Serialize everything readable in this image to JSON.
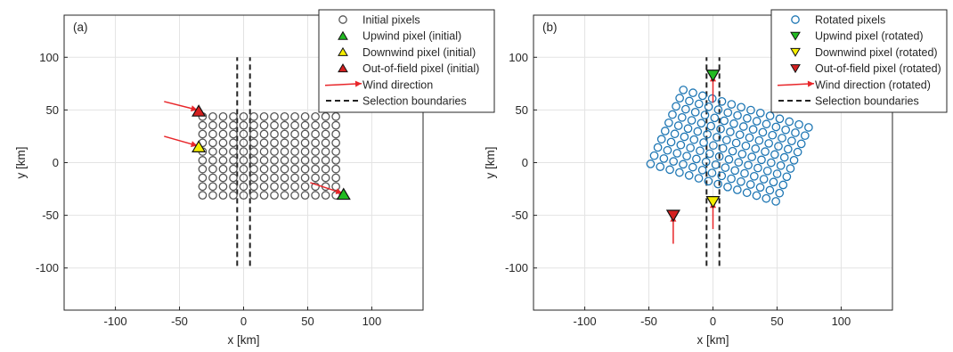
{
  "chart_data": [
    {
      "type": "scatter",
      "panel_label": "(a)",
      "xlabel": "x [km]",
      "ylabel": "y [km]",
      "xlim": [
        -140,
        140
      ],
      "ylim": [
        -140,
        140
      ],
      "xticks": [
        -100,
        -50,
        0,
        50,
        100
      ],
      "yticks": [
        -100,
        -50,
        0,
        50,
        100
      ],
      "grid": true,
      "legend_position": "top-right",
      "legend": [
        {
          "key": "pixels",
          "label": "Initial pixels"
        },
        {
          "key": "upwind",
          "label": "Upwind pixel (initial)"
        },
        {
          "key": "downwind",
          "label": "Downwind pixel (initial)"
        },
        {
          "key": "outfield",
          "label": "Out-of-field pixel (initial)"
        },
        {
          "key": "wind",
          "label": "Wind direction"
        },
        {
          "key": "boundary",
          "label": "Selection boundaries"
        }
      ],
      "pixel_grid": {
        "x_start": -32,
        "x_step": 8,
        "count_x": 14,
        "y_start": -31,
        "y_step": 8.3,
        "count_y": 10
      },
      "markers": [
        {
          "key": "upwind",
          "x": 78,
          "y": -30,
          "color": "#22bb22",
          "direction": "up"
        },
        {
          "key": "downwind",
          "x": -35,
          "y": 15,
          "color": "#f5ee00",
          "direction": "up"
        },
        {
          "key": "outfield",
          "x": -35,
          "y": 49,
          "color": "#d42020",
          "direction": "up"
        }
      ],
      "wind_arrows": [
        {
          "x1": -62,
          "y1": 58,
          "x2": -36,
          "y2": 50
        },
        {
          "x1": -62,
          "y1": 25,
          "x2": -36,
          "y2": 16
        },
        {
          "x1": 52,
          "y1": -19,
          "x2": 77,
          "y2": -29
        }
      ],
      "boundaries": [
        -5,
        5
      ],
      "boundary_y": [
        -98,
        100
      ],
      "colors": {
        "pixel": "#555555",
        "arrow": "#e8262a",
        "boundary": "#222222"
      }
    },
    {
      "type": "scatter",
      "panel_label": "(b)",
      "xlabel": "x [km]",
      "ylabel": "y [km]",
      "xlim": [
        -140,
        140
      ],
      "ylim": [
        -140,
        140
      ],
      "xticks": [
        -100,
        -50,
        0,
        50,
        100
      ],
      "yticks": [
        -100,
        -50,
        0,
        50,
        100
      ],
      "grid": true,
      "legend_position": "top-right",
      "legend": [
        {
          "key": "pixels",
          "label": "Rotated pixels"
        },
        {
          "key": "upwind",
          "label": "Upwind pixel (rotated)"
        },
        {
          "key": "downwind",
          "label": "Downwind pixel (rotated)"
        },
        {
          "key": "outfield",
          "label": "Out-of-field pixel (rotated)"
        },
        {
          "key": "wind",
          "label": "Wind direction (rotated)"
        },
        {
          "key": "boundary",
          "label": "Selection boundaries"
        }
      ],
      "pixel_grid": {
        "x_start": -32,
        "x_step": 8,
        "count_x": 14,
        "y_start": -31,
        "y_step": 8.3,
        "count_y": 10,
        "rotation_deg": -20,
        "offset_x": -8,
        "offset_y": 17
      },
      "markers": [
        {
          "key": "upwind",
          "x": 0,
          "y": 83,
          "color": "#22bb22",
          "direction": "down"
        },
        {
          "key": "downwind",
          "x": 0,
          "y": -37,
          "color": "#f5ee00",
          "direction": "down"
        },
        {
          "key": "outfield",
          "x": -31,
          "y": -50,
          "color": "#d42020",
          "direction": "down"
        }
      ],
      "wind_arrows": [
        {
          "x1": 0,
          "y1": 57,
          "x2": 0,
          "y2": 83
        },
        {
          "x1": 0,
          "y1": -63,
          "x2": 0,
          "y2": -37
        },
        {
          "x1": -31,
          "y1": -77,
          "x2": -31,
          "y2": -50
        }
      ],
      "boundaries": [
        -5,
        5
      ],
      "boundary_y": [
        -98,
        100
      ],
      "colors": {
        "pixel": "#1f77b4",
        "arrow": "#e8262a",
        "boundary": "#222222"
      }
    }
  ]
}
